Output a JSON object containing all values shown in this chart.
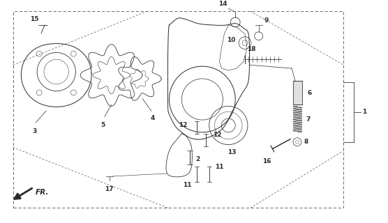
{
  "bg_color": "#ffffff",
  "line_color": "#2a2a2a",
  "fig_width": 5.56,
  "fig_height": 3.2,
  "dpi": 100
}
